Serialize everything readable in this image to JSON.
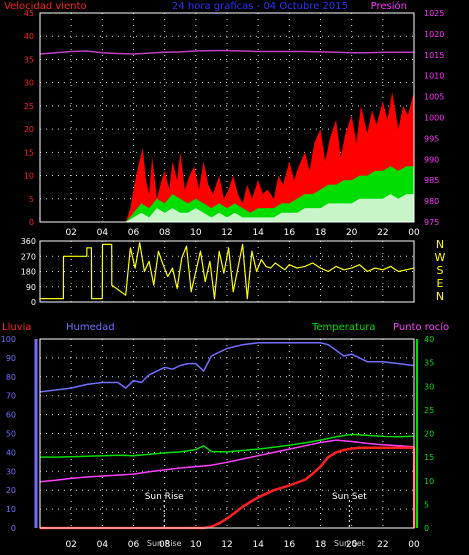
{
  "colors": {
    "background": "#000000",
    "frame": "#ffffff",
    "grid": "#d8d8d8",
    "wind_speed_axis": "#ff2020",
    "pressure_axis": "#ff30ff",
    "title": "#3030ff",
    "direction": "#ffff00",
    "direction_letters": "#ffff00",
    "rain": "#ff2020",
    "humidity": "#7070ff",
    "temperature": "#00dd00",
    "dew_point": "#ff40ff",
    "time_labels": "#ffffff"
  },
  "chart_data": [
    {
      "type": "area",
      "title": "24 hora graficas - 04 Octubre 2015",
      "left_label": "Velocidad viento",
      "right_label": "Presión",
      "x_ticks": [
        "02",
        "04",
        "06",
        "08",
        "10",
        "12",
        "14",
        "16",
        "18",
        "20",
        "22",
        "00"
      ],
      "x_tick_hours": [
        2,
        4,
        6,
        8,
        10,
        12,
        14,
        16,
        18,
        20,
        22,
        24
      ],
      "xlim_hours": [
        0,
        24
      ],
      "y_left_ticks": [
        "0",
        "5",
        "10",
        "15",
        "20",
        "25",
        "30",
        "35",
        "40",
        "45"
      ],
      "ylim_left": [
        0,
        45
      ],
      "y_right_ticks": [
        "975",
        "980",
        "985",
        "990",
        "995",
        "1000",
        "1005",
        "1010",
        "1015",
        "1020",
        "1025"
      ],
      "ylim_right": [
        975,
        1025
      ],
      "series": [
        {
          "axis": "left",
          "color": "#ff0000",
          "x": [
            0,
            5.5,
            5.8,
            6.0,
            6.3,
            6.6,
            6.8,
            7.0,
            7.2,
            7.5,
            7.8,
            8.0,
            8.3,
            8.5,
            8.8,
            9.0,
            9.3,
            9.6,
            9.9,
            10.2,
            10.5,
            10.8,
            11.1,
            11.5,
            11.8,
            12.1,
            12.4,
            12.7,
            13.0,
            13.3,
            13.6,
            14.0,
            14.3,
            14.6,
            15.0,
            15.3,
            15.6,
            16.0,
            16.3,
            16.6,
            17.0,
            17.3,
            17.6,
            18.0,
            18.3,
            18.6,
            19.0,
            19.3,
            19.6,
            20.0,
            20.3,
            20.6,
            21.0,
            21.3,
            21.6,
            22.0,
            22.3,
            22.6,
            23.0,
            23.3,
            23.6,
            24.0
          ],
          "values": [
            0,
            0,
            3,
            7,
            12,
            16,
            9,
            6,
            14,
            5,
            9,
            11,
            7,
            13,
            9,
            15,
            7,
            10,
            12,
            7,
            13,
            8,
            6,
            10,
            5,
            7,
            10,
            6,
            4,
            8,
            5,
            9,
            6,
            7,
            5,
            10,
            8,
            13,
            9,
            12,
            15,
            11,
            17,
            20,
            13,
            18,
            22,
            14,
            19,
            23,
            17,
            25,
            19,
            24,
            21,
            26,
            22,
            28,
            20,
            25,
            23,
            28
          ]
        },
        {
          "axis": "left",
          "color": "#00dd00",
          "x": [
            0,
            5.5,
            6.0,
            6.5,
            7.0,
            7.5,
            8.0,
            8.5,
            9.0,
            9.5,
            10.0,
            10.5,
            11.0,
            11.5,
            12.0,
            12.5,
            13.0,
            13.5,
            14.0,
            14.5,
            15.0,
            15.5,
            16.0,
            16.5,
            17.0,
            17.5,
            18.0,
            18.5,
            19.0,
            19.5,
            20.0,
            20.5,
            21.0,
            21.5,
            22.0,
            22.5,
            23.0,
            23.5,
            24.0
          ],
          "values": [
            0,
            0,
            2,
            4,
            3,
            5,
            4,
            6,
            5,
            4,
            5,
            4,
            3,
            4,
            3,
            4,
            3,
            2,
            3,
            3,
            3,
            4,
            4,
            5,
            6,
            6,
            7,
            8,
            8,
            9,
            9,
            10,
            10,
            11,
            11,
            12,
            11,
            12,
            12
          ]
        },
        {
          "axis": "left",
          "color": "#c8f5c8",
          "x": [
            0,
            5.5,
            6.0,
            6.5,
            7.0,
            7.5,
            8.0,
            8.5,
            9.0,
            9.5,
            10.0,
            10.5,
            11.0,
            11.5,
            12.0,
            12.5,
            13.0,
            13.5,
            14.0,
            14.5,
            15.0,
            15.5,
            16.0,
            16.5,
            17.0,
            17.5,
            18.0,
            18.5,
            19.0,
            19.5,
            20.0,
            20.5,
            21.0,
            21.5,
            22.0,
            22.5,
            23.0,
            23.5,
            24.0
          ],
          "values": [
            0,
            0,
            1,
            2,
            1,
            3,
            2,
            3,
            2,
            2,
            3,
            2,
            1,
            2,
            1,
            2,
            1,
            1,
            1,
            1,
            1,
            2,
            2,
            2,
            3,
            3,
            3,
            4,
            4,
            4,
            4,
            5,
            5,
            5,
            5,
            6,
            5,
            6,
            6
          ]
        },
        {
          "axis": "right",
          "color": "#c040c0",
          "x": [
            0,
            1,
            2,
            3,
            4,
            5,
            6,
            7,
            8,
            9,
            10,
            11,
            12,
            13,
            14,
            15,
            16,
            17,
            18,
            19,
            20,
            21,
            22,
            23,
            24
          ],
          "values": [
            1015.2,
            1015.5,
            1015.8,
            1015.9,
            1015.5,
            1015.3,
            1015.2,
            1015.4,
            1015.6,
            1015.7,
            1015.9,
            1016.0,
            1016.0,
            1015.9,
            1015.8,
            1015.8,
            1015.8,
            1015.8,
            1015.7,
            1015.6,
            1015.5,
            1015.5,
            1015.6,
            1015.6,
            1015.6
          ]
        }
      ]
    },
    {
      "type": "line",
      "direction_letters": [
        "N",
        "W",
        "S",
        "E",
        "N"
      ],
      "xlim_hours": [
        0,
        24
      ],
      "y_ticks": [
        "360",
        "270",
        "180",
        "90",
        "0"
      ],
      "ylim": [
        0,
        360
      ],
      "series": [
        {
          "color": "#ffff00",
          "x": [
            0,
            1.5,
            1.51,
            3.0,
            3.01,
            3.3,
            3.31,
            4.0,
            4.01,
            4.6,
            4.61,
            5.5,
            5.8,
            6.1,
            6.4,
            6.7,
            7.0,
            7.3,
            7.6,
            7.9,
            8.2,
            8.5,
            8.8,
            9.1,
            9.4,
            9.7,
            10.0,
            10.3,
            10.6,
            10.9,
            11.2,
            11.5,
            11.8,
            12.1,
            12.4,
            12.7,
            13.0,
            13.3,
            13.6,
            13.9,
            14.2,
            14.5,
            14.8,
            15.1,
            15.4,
            15.7,
            16.0,
            16.5,
            17.0,
            17.5,
            18.0,
            18.5,
            19.0,
            19.5,
            20.0,
            20.5,
            21.0,
            21.5,
            22.0,
            22.5,
            23.0,
            23.5,
            24.0
          ],
          "values": [
            20,
            20,
            270,
            270,
            320,
            320,
            20,
            20,
            340,
            340,
            100,
            40,
            320,
            200,
            350,
            180,
            240,
            100,
            300,
            220,
            150,
            200,
            80,
            260,
            330,
            60,
            180,
            300,
            120,
            240,
            20,
            300,
            170,
            320,
            60,
            200,
            340,
            20,
            300,
            180,
            250,
            210,
            200,
            230,
            210,
            190,
            220,
            200,
            210,
            230,
            200,
            180,
            210,
            190,
            200,
            220,
            180,
            200,
            190,
            210,
            180,
            190,
            200
          ]
        }
      ]
    },
    {
      "type": "line",
      "labels": {
        "rain": "Lluvia",
        "humidity": "Humedad",
        "temperature": "Temperatura",
        "dew_point": "Punto rocío",
        "sunrise": "Sun Rise",
        "sunset": "Sun Set",
        "sunrise_axis": "Sun Rise",
        "sunset_axis": "Sun Set"
      },
      "x_ticks": [
        "02",
        "04",
        "06",
        "08",
        "10",
        "12",
        "14",
        "16",
        "18",
        "20",
        "22",
        "00"
      ],
      "x_tick_hours": [
        2,
        4,
        6,
        8,
        10,
        12,
        14,
        16,
        18,
        20,
        22,
        24
      ],
      "xlim_hours": [
        0,
        24
      ],
      "sunrise_hour": 7.97,
      "sunset_hour": 19.85,
      "y_left_ticks": [
        "0",
        "10",
        "20",
        "30",
        "40",
        "50",
        "60",
        "70",
        "80",
        "90",
        "100"
      ],
      "ylim_left": [
        0,
        100
      ],
      "y_right_ticks": [
        "0",
        "5",
        "10",
        "15",
        "20",
        "25",
        "30",
        "35",
        "40"
      ],
      "ylim_right": [
        0,
        40
      ],
      "series": [
        {
          "name": "Humedad",
          "axis": "left",
          "color": "#7070ff",
          "x": [
            0,
            1,
            2,
            3,
            4,
            5,
            5.5,
            6,
            6.5,
            7,
            7.5,
            8,
            8.5,
            9,
            9.5,
            10,
            10.5,
            11,
            11.5,
            12,
            13,
            14,
            15,
            16,
            17,
            18,
            18.5,
            19,
            19.5,
            20,
            20.5,
            21,
            22,
            23,
            24
          ],
          "values": [
            72,
            73,
            74,
            76,
            77,
            77,
            74,
            78,
            77,
            81,
            83,
            85,
            84,
            86,
            87,
            87,
            83,
            91,
            93,
            95,
            97,
            98,
            98,
            98,
            98,
            98,
            97,
            94,
            91,
            92,
            90,
            88,
            88,
            87,
            86
          ]
        },
        {
          "name": "Temperatura",
          "axis": "right",
          "color": "#00dd00",
          "x": [
            0,
            1,
            2,
            3,
            4,
            5,
            6,
            7,
            8,
            9,
            10,
            10.5,
            11,
            12,
            13,
            14,
            15,
            16,
            17,
            18,
            19,
            20,
            21,
            22,
            23,
            24
          ],
          "values": [
            15.0,
            15.0,
            15.1,
            15.2,
            15.3,
            15.4,
            15.3,
            15.6,
            15.9,
            16.1,
            16.6,
            17.4,
            16.2,
            16.1,
            16.4,
            16.7,
            17.1,
            17.5,
            18.0,
            18.6,
            19.3,
            19.8,
            19.6,
            19.4,
            19.3,
            19.4
          ]
        },
        {
          "name": "Punto rocío",
          "axis": "right",
          "color": "#ff40ff",
          "x": [
            0,
            1,
            2,
            3,
            4,
            5,
            6,
            7,
            8,
            9,
            10,
            11,
            12,
            13,
            14,
            15,
            16,
            17,
            18,
            19,
            20,
            21,
            22,
            23,
            24
          ],
          "values": [
            9.8,
            10.1,
            10.5,
            10.8,
            11.0,
            11.2,
            11.4,
            11.9,
            12.3,
            12.7,
            13.0,
            13.3,
            13.9,
            14.6,
            15.3,
            16.0,
            16.7,
            17.4,
            18.1,
            18.6,
            18.3,
            17.9,
            17.6,
            17.4,
            17.2
          ]
        },
        {
          "name": "Lluvia",
          "axis": "right",
          "color": "#ff2020",
          "x": [
            0,
            10.5,
            11.0,
            11.5,
            12.0,
            12.5,
            13.0,
            14.0,
            15.0,
            16.0,
            17.0,
            17.5,
            18.0,
            18.5,
            19.0,
            19.5,
            20.0,
            20.5,
            21.0,
            24.0,
            24.01
          ],
          "values": [
            0,
            0,
            0.3,
            1.0,
            2.0,
            3.2,
            4.5,
            6.5,
            8.0,
            9.0,
            10.2,
            11.5,
            13.0,
            15.0,
            16.0,
            16.5,
            16.8,
            17.0,
            17.0,
            17.0,
            0
          ]
        }
      ]
    }
  ]
}
